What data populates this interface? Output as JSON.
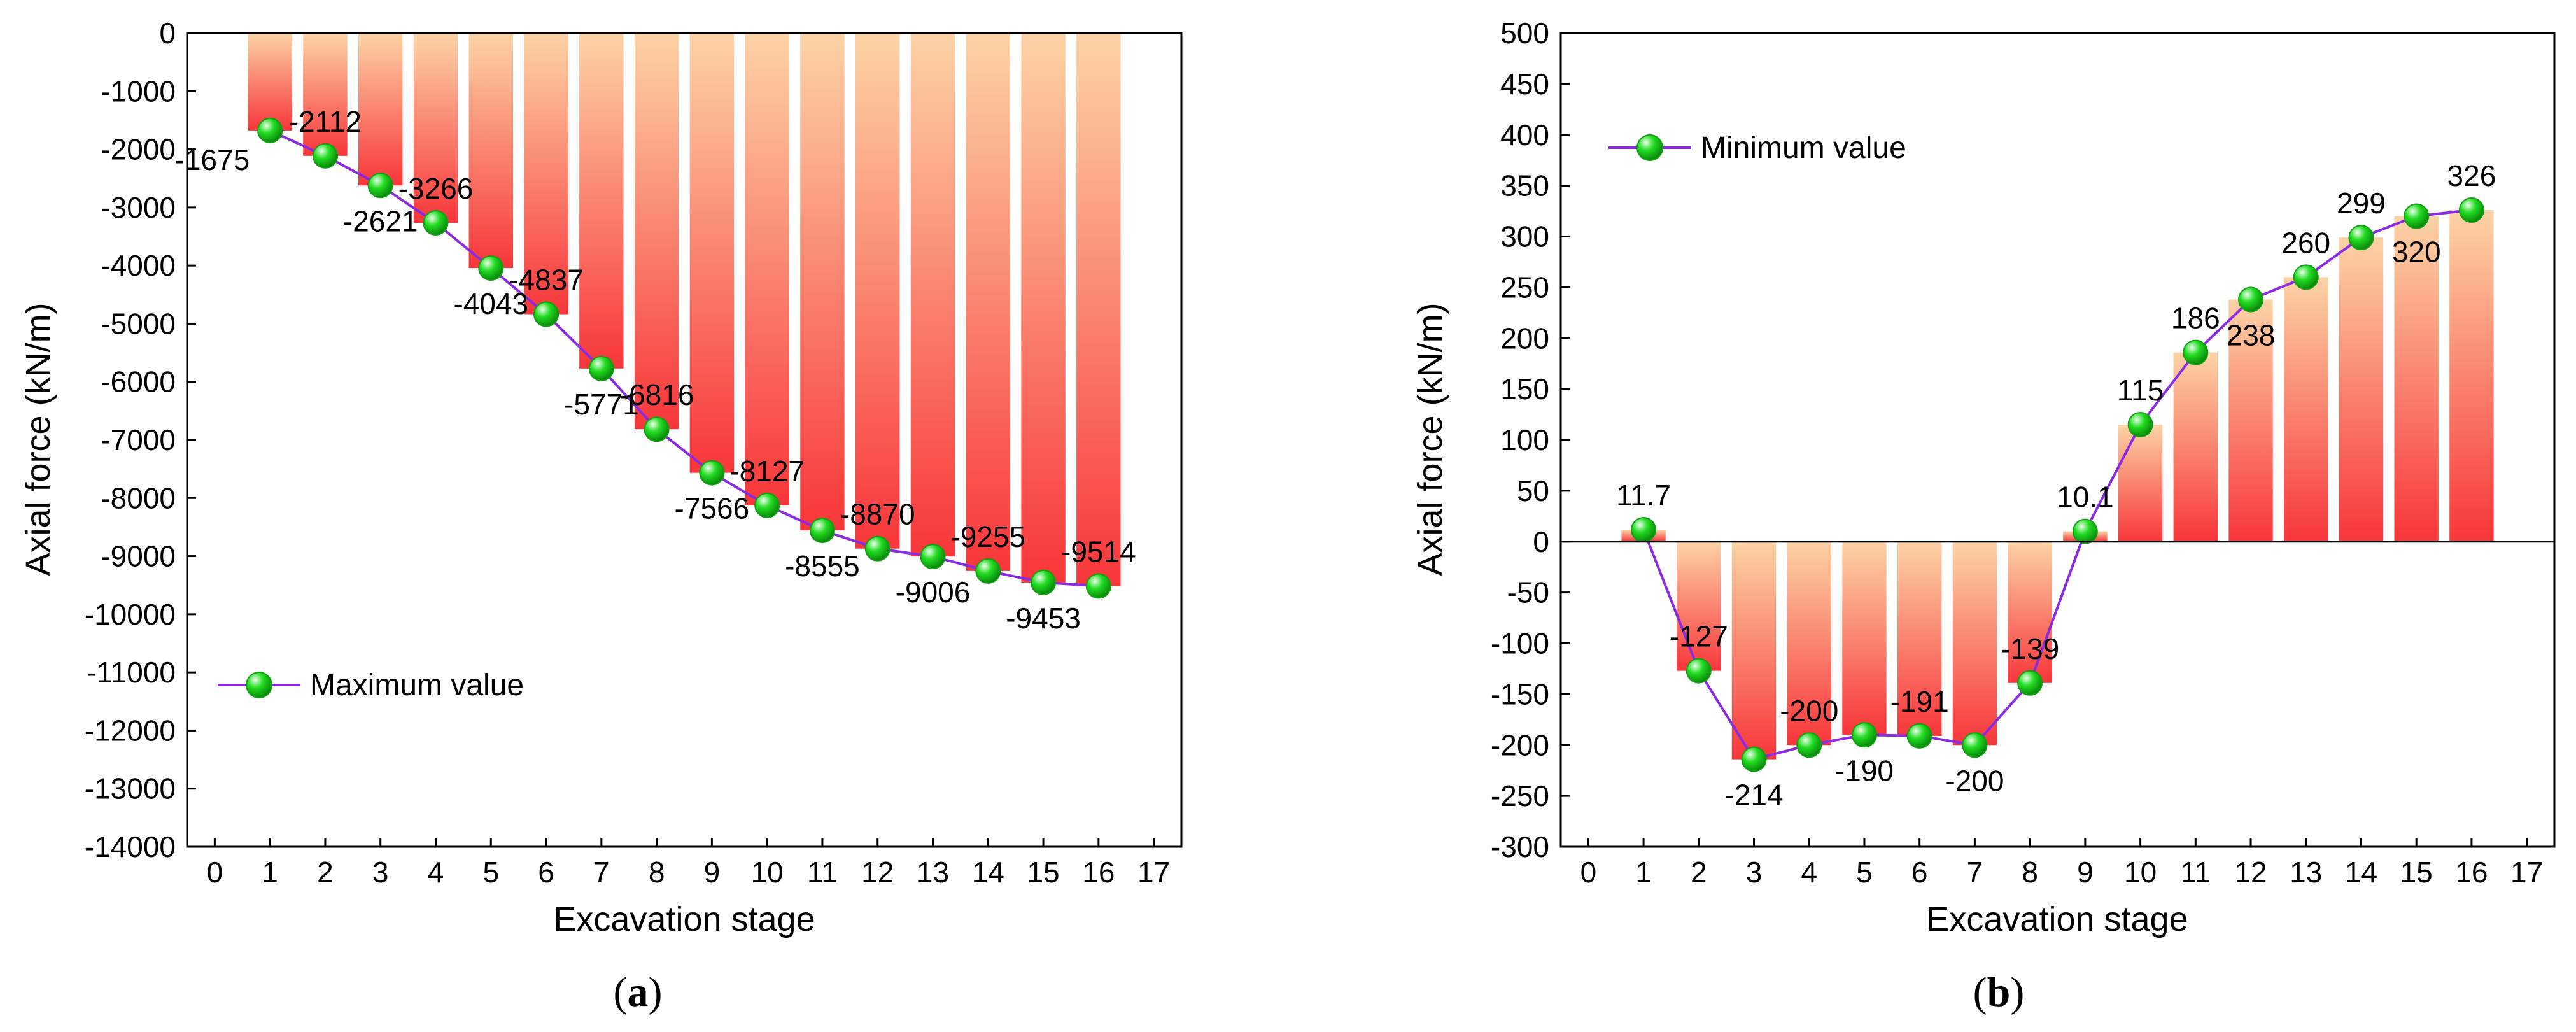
{
  "colors": {
    "bar_top": "#fcd3a6",
    "bar_bottom": "#f8363a",
    "line": "#8a2be2",
    "marker": "#22dd22",
    "marker_highlight": "#eaffea"
  },
  "chart_data": [
    {
      "id": "a",
      "type": "bar",
      "panel_label_open": "(",
      "panel_label_letter": "a",
      "panel_label_close": ")",
      "xlabel": "Excavation stage",
      "ylabel": "Axial force (kN/m)",
      "xlim": [
        -0.5,
        17.5
      ],
      "ylim": [
        -14000,
        0
      ],
      "x_ticks": [
        0,
        1,
        2,
        3,
        4,
        5,
        6,
        7,
        8,
        9,
        10,
        11,
        12,
        13,
        14,
        15,
        16,
        17
      ],
      "y_ticks": [
        0,
        -1000,
        -2000,
        -3000,
        -4000,
        -5000,
        -6000,
        -7000,
        -8000,
        -9000,
        -10000,
        -11000,
        -12000,
        -13000,
        -14000
      ],
      "categories": [
        1,
        2,
        3,
        4,
        5,
        6,
        7,
        8,
        9,
        10,
        11,
        12,
        13,
        14,
        15,
        16
      ],
      "bar_values": [
        -1675,
        -2112,
        -2621,
        -3266,
        -4043,
        -4837,
        -5771,
        -6816,
        -7566,
        -8127,
        -8555,
        -8870,
        -9006,
        -9255,
        -9453,
        -9514
      ],
      "series": [
        {
          "name": "Maximum value",
          "values": [
            -1675,
            -2112,
            -2621,
            -3266,
            -4043,
            -4837,
            -5771,
            -6816,
            -7566,
            -8127,
            -8555,
            -8870,
            -9006,
            -9255,
            -9453,
            -9514
          ]
        }
      ],
      "data_labels": [
        "-1675",
        "-2112",
        "-2621",
        "-3266",
        "-4043",
        "-4837",
        "-5771",
        "-6816",
        "-7566",
        "-8127",
        "-8555",
        "-8870",
        "-9006",
        "-9255",
        "-9453",
        "-9514"
      ],
      "label_positions": [
        "left",
        "above",
        "below",
        "above",
        "below",
        "above",
        "below",
        "above",
        "below",
        "above",
        "below",
        "above",
        "below",
        "above",
        "below",
        "above"
      ],
      "legend": {
        "position": "bottom-left"
      },
      "zero_line": false,
      "grid": false
    },
    {
      "id": "b",
      "type": "bar",
      "panel_label_open": "(",
      "panel_label_letter": "b",
      "panel_label_close": ")",
      "xlabel": "Excavation stage",
      "ylabel": "Axial force (kN/m)",
      "xlim": [
        -0.5,
        17.5
      ],
      "ylim": [
        -300,
        500
      ],
      "x_ticks": [
        0,
        1,
        2,
        3,
        4,
        5,
        6,
        7,
        8,
        9,
        10,
        11,
        12,
        13,
        14,
        15,
        16,
        17
      ],
      "y_ticks": [
        500,
        450,
        400,
        350,
        300,
        250,
        200,
        150,
        100,
        50,
        0,
        -50,
        -100,
        -150,
        -200,
        -250,
        -300
      ],
      "categories": [
        1,
        2,
        3,
        4,
        5,
        6,
        7,
        8,
        9,
        10,
        11,
        12,
        13,
        14,
        15,
        16
      ],
      "bar_values": [
        11.7,
        -127,
        -214,
        -200,
        -190,
        -191,
        -200,
        -139,
        10.1,
        115,
        186,
        238,
        260,
        299,
        320,
        326
      ],
      "series": [
        {
          "name": "Minimum value",
          "values": [
            11.7,
            -127,
            -214,
            -200,
            -190,
            -191,
            -200,
            -139,
            10.1,
            115,
            186,
            238,
            260,
            299,
            320,
            326
          ]
        }
      ],
      "data_labels": [
        "11.7",
        "-127",
        "-214",
        "-200",
        "-190",
        "-191",
        "-200",
        "-139",
        "10.1",
        "115",
        "186",
        "238",
        "260",
        "299",
        "320",
        "326"
      ],
      "label_positions": [
        "above",
        "above",
        "below",
        "above",
        "below",
        "above",
        "below",
        "above",
        "above",
        "above",
        "above",
        "below",
        "above",
        "above",
        "below",
        "above"
      ],
      "legend": {
        "position": "top-left"
      },
      "zero_line": true,
      "grid": false
    }
  ]
}
